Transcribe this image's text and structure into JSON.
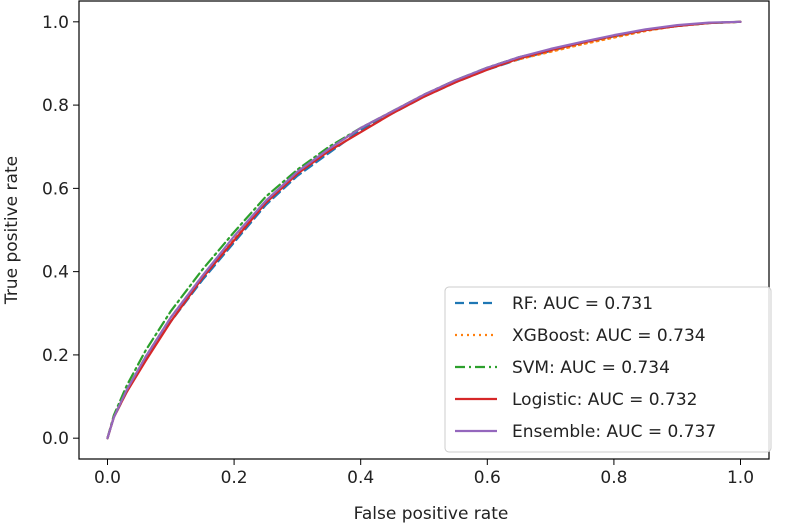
{
  "chart_data": {
    "type": "line",
    "title": "",
    "xlabel": "False positive rate",
    "ylabel": "True positive rate",
    "xlim": [
      -0.045,
      1.045
    ],
    "ylim": [
      -0.05,
      1.05
    ],
    "xticks": [
      "0.0",
      "0.2",
      "0.4",
      "0.6",
      "0.8",
      "1.0"
    ],
    "yticks": [
      "0.0",
      "0.2",
      "0.4",
      "0.6",
      "0.8",
      "1.0"
    ],
    "grid": false,
    "legend_position": "lower-right",
    "series": [
      {
        "name": "RF: AUC = 0.731",
        "color": "#1f77b4",
        "dash": "dashed",
        "x": [
          0,
          0.01,
          0.03,
          0.06,
          0.1,
          0.15,
          0.2,
          0.25,
          0.3,
          0.35,
          0.4,
          0.45,
          0.5,
          0.55,
          0.6,
          0.65,
          0.7,
          0.75,
          0.8,
          0.85,
          0.9,
          0.95,
          1.0
        ],
        "y": [
          0,
          0.05,
          0.11,
          0.19,
          0.28,
          0.38,
          0.47,
          0.56,
          0.63,
          0.685,
          0.74,
          0.78,
          0.82,
          0.855,
          0.885,
          0.91,
          0.93,
          0.95,
          0.965,
          0.98,
          0.99,
          0.997,
          1.0
        ]
      },
      {
        "name": "XGBoost: AUC = 0.734",
        "color": "#ff7f0e",
        "dash": "dotted",
        "x": [
          0,
          0.01,
          0.03,
          0.06,
          0.1,
          0.15,
          0.2,
          0.25,
          0.3,
          0.35,
          0.4,
          0.45,
          0.5,
          0.55,
          0.6,
          0.65,
          0.7,
          0.75,
          0.8,
          0.85,
          0.9,
          0.95,
          1.0
        ],
        "y": [
          0,
          0.05,
          0.115,
          0.195,
          0.29,
          0.39,
          0.48,
          0.57,
          0.64,
          0.695,
          0.745,
          0.785,
          0.825,
          0.86,
          0.888,
          0.91,
          0.928,
          0.946,
          0.962,
          0.978,
          0.99,
          0.997,
          1.0
        ]
      },
      {
        "name": "SVM: AUC = 0.734",
        "color": "#2ca02c",
        "dash": "dashdot",
        "x": [
          0,
          0.01,
          0.03,
          0.06,
          0.1,
          0.15,
          0.2,
          0.25,
          0.3,
          0.35,
          0.4,
          0.45,
          0.5,
          0.55,
          0.6,
          0.65,
          0.7,
          0.75,
          0.8,
          0.85,
          0.9,
          0.95,
          1.0
        ],
        "y": [
          0,
          0.055,
          0.125,
          0.21,
          0.305,
          0.405,
          0.495,
          0.58,
          0.645,
          0.7,
          0.745,
          0.785,
          0.825,
          0.86,
          0.89,
          0.915,
          0.932,
          0.95,
          0.966,
          0.98,
          0.99,
          0.997,
          1.0
        ]
      },
      {
        "name": "Logistic: AUC = 0.732",
        "color": "#d62728",
        "dash": "solid",
        "x": [
          0,
          0.01,
          0.03,
          0.06,
          0.1,
          0.15,
          0.2,
          0.25,
          0.3,
          0.35,
          0.4,
          0.45,
          0.5,
          0.55,
          0.6,
          0.65,
          0.7,
          0.75,
          0.8,
          0.85,
          0.9,
          0.95,
          1.0
        ],
        "y": [
          0,
          0.05,
          0.11,
          0.185,
          0.28,
          0.385,
          0.475,
          0.565,
          0.635,
          0.69,
          0.735,
          0.78,
          0.82,
          0.855,
          0.885,
          0.912,
          0.932,
          0.95,
          0.966,
          0.98,
          0.99,
          0.997,
          1.0
        ]
      },
      {
        "name": "Ensemble: AUC = 0.737",
        "color": "#9467bd",
        "dash": "solid",
        "x": [
          0,
          0.01,
          0.03,
          0.06,
          0.1,
          0.15,
          0.2,
          0.25,
          0.3,
          0.35,
          0.4,
          0.45,
          0.5,
          0.55,
          0.6,
          0.65,
          0.7,
          0.75,
          0.8,
          0.85,
          0.9,
          0.95,
          1.0
        ],
        "y": [
          0,
          0.05,
          0.115,
          0.195,
          0.29,
          0.39,
          0.485,
          0.57,
          0.64,
          0.695,
          0.745,
          0.785,
          0.825,
          0.86,
          0.89,
          0.915,
          0.935,
          0.952,
          0.968,
          0.982,
          0.992,
          0.998,
          1.0
        ]
      }
    ]
  }
}
